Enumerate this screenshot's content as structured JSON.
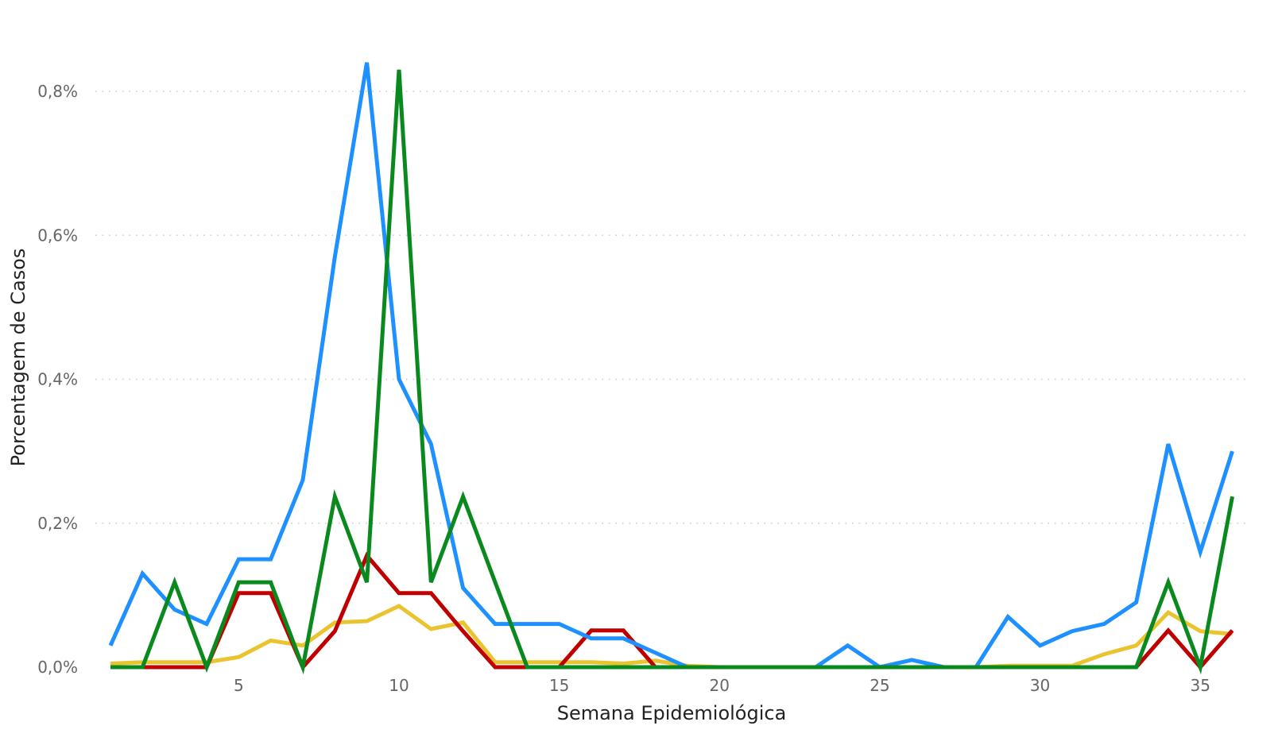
{
  "chart_data": {
    "type": "line",
    "title": "",
    "xlabel": "Semana Epidemiológica",
    "ylabel": "Porcentagem de Casos",
    "x": [
      1,
      2,
      3,
      4,
      5,
      6,
      7,
      8,
      9,
      10,
      11,
      12,
      13,
      14,
      15,
      16,
      17,
      18,
      19,
      20,
      21,
      22,
      23,
      24,
      25,
      26,
      27,
      28,
      29,
      30,
      31,
      32,
      33,
      34,
      35,
      36
    ],
    "xlim": [
      0.5,
      36.4
    ],
    "ylim": [
      0,
      0.9
    ],
    "x_ticks": [
      5,
      10,
      15,
      20,
      25,
      30,
      35
    ],
    "y_ticks": [
      0,
      0.2,
      0.4,
      0.6,
      0.8
    ],
    "y_tick_labels": [
      "0,0%",
      "0,2%",
      "0,4%",
      "0,6%",
      "0,8%"
    ],
    "grid": "horizontal dotted",
    "legend": "none",
    "series": [
      {
        "color": "#EAC42F",
        "values": [
          0.005,
          0.007,
          0.007,
          0.007,
          0.014,
          0.037,
          0.03,
          0.062,
          0.064,
          0.085,
          0.053,
          0.062,
          0.007,
          0.007,
          0.007,
          0.007,
          0.005,
          0.009,
          0.002,
          0,
          0,
          0,
          0,
          0,
          0,
          0,
          0,
          0,
          0.002,
          0.002,
          0.002,
          0.018,
          0.03,
          0.076,
          0.05,
          0.046
        ]
      },
      {
        "color": "#C00000",
        "values": [
          0,
          0,
          0,
          0,
          0.103,
          0.103,
          0,
          0.05,
          0.155,
          0.103,
          0.103,
          0.05,
          0,
          0,
          0,
          0.051,
          0.051,
          0,
          0,
          0,
          0,
          0,
          0,
          0,
          0,
          0,
          0,
          0,
          0,
          0,
          0,
          0,
          0,
          0.051,
          0,
          0.051
        ]
      },
      {
        "color": "#1E90FF",
        "values": [
          0.03,
          0.13,
          0.08,
          0.06,
          0.15,
          0.15,
          0.26,
          0.57,
          0.84,
          0.4,
          0.31,
          0.11,
          0.06,
          0.06,
          0.06,
          0.04,
          0.04,
          0.02,
          0,
          0,
          0,
          0,
          0,
          0.03,
          0,
          0.01,
          0,
          0,
          0.07,
          0.03,
          0.05,
          0.06,
          0.09,
          0.31,
          0.16,
          0.3
        ]
      },
      {
        "color": "#0A8A1E",
        "values": [
          0,
          0,
          0.118,
          0,
          0.118,
          0.118,
          0,
          0.237,
          0.118,
          0.83,
          0.118,
          0.237,
          0.118,
          0,
          0,
          0,
          0,
          0,
          0,
          0,
          0,
          0,
          0,
          0,
          0,
          0,
          0,
          0,
          0,
          0,
          0,
          0,
          0,
          0.118,
          0,
          0.237
        ]
      }
    ]
  }
}
